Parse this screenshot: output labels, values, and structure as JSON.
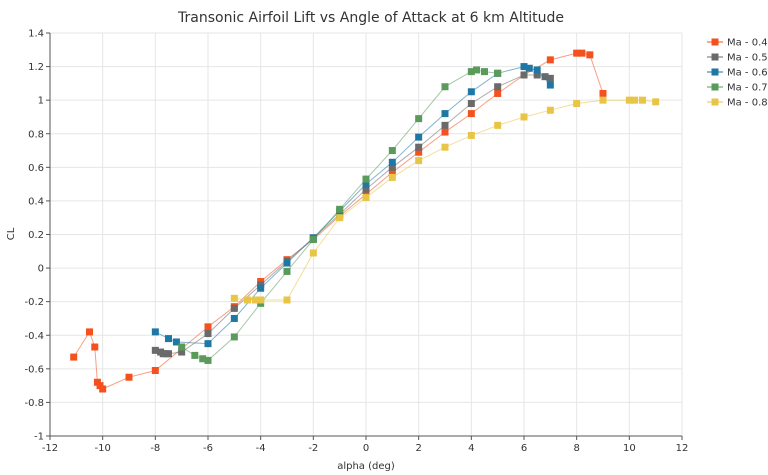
{
  "chart_data": {
    "type": "line",
    "title": "Transonic Airfoil Lift vs Angle of Attack at 6 km Altitude",
    "xlabel": "alpha (deg)",
    "ylabel": "CL",
    "xlim": [
      -12,
      12
    ],
    "ylim": [
      -1,
      1.4
    ],
    "xticks": [
      -12,
      -10,
      -8,
      -6,
      -4,
      -2,
      0,
      2,
      4,
      6,
      8,
      10,
      12
    ],
    "yticks": [
      -1,
      -0.8,
      -0.6,
      -0.4,
      -0.2,
      0,
      0.2,
      0.4,
      0.6,
      0.8,
      1,
      1.2,
      1.4
    ],
    "xtick_labels": [
      "-12",
      "-10",
      "-8",
      "-6",
      "-4",
      "-2",
      "0",
      "2",
      "4",
      "6",
      "8",
      "10",
      "12"
    ],
    "ytick_labels": [
      "-1",
      "-0.8",
      "-0.6",
      "-0.4",
      "-0.2",
      "0",
      "0.2",
      "0.4",
      "0.6",
      "0.8",
      "1",
      "1.2",
      "1.4"
    ],
    "grid": true,
    "legend_position": "top-right",
    "series": [
      {
        "name": "Ma - 0.4",
        "color": "#f4511e",
        "x": [
          -11.1,
          -10.5,
          -10.3,
          -10.2,
          -10.1,
          -10.0,
          -9.0,
          -8.0,
          -6.0,
          -5.0,
          -4.0,
          -3.0,
          -2.0,
          -1.0,
          0.0,
          1.0,
          2.0,
          3.0,
          4.0,
          5.0,
          6.0,
          7.0,
          8.0,
          8.2,
          8.5,
          9.0
        ],
        "y": [
          -0.53,
          -0.38,
          -0.47,
          -0.68,
          -0.7,
          -0.72,
          -0.65,
          -0.61,
          -0.35,
          -0.23,
          -0.08,
          0.05,
          0.17,
          0.31,
          0.44,
          0.57,
          0.69,
          0.81,
          0.92,
          1.04,
          1.15,
          1.24,
          1.28,
          1.28,
          1.27,
          1.04
        ]
      },
      {
        "name": "Ma - 0.5",
        "color": "#6a6a6a",
        "x": [
          -8.0,
          -7.8,
          -7.7,
          -7.6,
          -7.5,
          -7.0,
          -6.0,
          -5.0,
          -4.0,
          -3.0,
          -2.0,
          -1.0,
          0.0,
          1.0,
          2.0,
          3.0,
          4.0,
          5.0,
          6.0,
          6.5,
          6.8,
          7.0
        ],
        "y": [
          -0.49,
          -0.5,
          -0.51,
          -0.51,
          -0.51,
          -0.5,
          -0.39,
          -0.24,
          -0.1,
          0.04,
          0.18,
          0.32,
          0.47,
          0.6,
          0.72,
          0.85,
          0.98,
          1.08,
          1.15,
          1.15,
          1.14,
          1.13
        ]
      },
      {
        "name": "Ma - 0.6",
        "color": "#1f77a4",
        "x": [
          -8.0,
          -7.5,
          -7.2,
          -6.0,
          -5.0,
          -4.0,
          -3.0,
          -2.0,
          -1.0,
          0.0,
          1.0,
          2.0,
          3.0,
          4.0,
          5.0,
          6.0,
          6.2,
          6.5,
          7.0
        ],
        "y": [
          -0.38,
          -0.42,
          -0.44,
          -0.45,
          -0.3,
          -0.12,
          0.03,
          0.18,
          0.34,
          0.5,
          0.63,
          0.78,
          0.92,
          1.05,
          1.16,
          1.2,
          1.19,
          1.18,
          1.09
        ]
      },
      {
        "name": "Ma - 0.7",
        "color": "#5a9a5a",
        "x": [
          -7.0,
          -6.5,
          -6.2,
          -6.0,
          -5.0,
          -4.0,
          -3.0,
          -2.0,
          -1.0,
          0.0,
          1.0,
          2.0,
          3.0,
          4.0,
          4.2,
          4.5,
          5.0
        ],
        "y": [
          -0.47,
          -0.52,
          -0.54,
          -0.55,
          -0.41,
          -0.21,
          -0.02,
          0.17,
          0.35,
          0.53,
          0.7,
          0.89,
          1.08,
          1.17,
          1.18,
          1.17,
          1.16
        ]
      },
      {
        "name": "Ma - 0.8",
        "color": "#e8c547",
        "x": [
          -5.0,
          -4.5,
          -4.2,
          -4.0,
          -3.0,
          -2.0,
          -1.0,
          0.0,
          1.0,
          2.0,
          3.0,
          4.0,
          5.0,
          6.0,
          7.0,
          8.0,
          9.0,
          10.0,
          10.2,
          10.5,
          11.0
        ],
        "y": [
          -0.18,
          -0.19,
          -0.19,
          -0.19,
          -0.19,
          0.09,
          0.3,
          0.42,
          0.54,
          0.64,
          0.72,
          0.79,
          0.85,
          0.9,
          0.94,
          0.98,
          1.0,
          1.0,
          1.0,
          1.0,
          0.99
        ]
      }
    ]
  }
}
